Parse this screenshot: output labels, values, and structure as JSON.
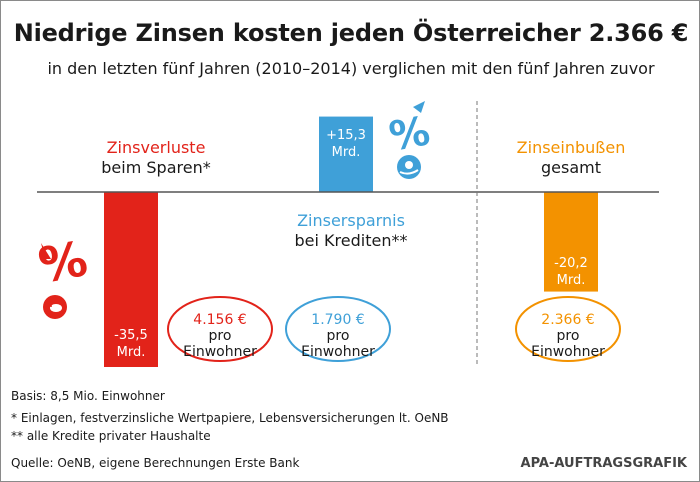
{
  "title": "Niedrige Zinsen kosten jeden Österreicher 2.366 €",
  "subtitle": "in den letzten fünf Jahren (2010–2014) verglichen mit den fünf Jahren zuvor",
  "colors": {
    "red": "#e2231a",
    "blue": "#3fa0d8",
    "orange": "#f39200",
    "axis": "#555555"
  },
  "chart_data": {
    "type": "bar",
    "categories": [
      "Zinsverluste beim Sparen*",
      "Zinsersparnis bei Krediten**",
      "Zinseinbußen gesamt"
    ],
    "values": [
      -35.5,
      15.3,
      -20.2
    ],
    "unit": "Mrd.",
    "bars": [
      {
        "id": "sparen",
        "label_line1": "Zinsverluste",
        "label_line2": "beim Sparen*",
        "value": -35.5,
        "value_text": "-35,5",
        "unit_text": "Mrd.",
        "color": "red",
        "per_capita": "4.156 €",
        "per_capita_unit1": "pro",
        "per_capita_unit2": "Einwohner"
      },
      {
        "id": "kredite",
        "label_line1": "Zinsersparnis",
        "label_line2": "bei Krediten**",
        "value": 15.3,
        "value_text": "+15,3",
        "unit_text": "Mrd.",
        "color": "blue",
        "per_capita": "1.790 €",
        "per_capita_unit1": "pro",
        "per_capita_unit2": "Einwohner"
      },
      {
        "id": "gesamt",
        "label_line1": "Zinseinbußen",
        "label_line2": "gesamt",
        "value": -20.2,
        "value_text": "-20,2",
        "unit_text": "Mrd.",
        "color": "orange",
        "per_capita": "2.366 €",
        "per_capita_unit1": "pro",
        "per_capita_unit2": "Einwohner"
      }
    ]
  },
  "icons": {
    "red_percent": "percent-down-icon",
    "piggy": "piggy-bank-icon",
    "blue_percent": "percent-up-icon",
    "hand_coin": "hand-coin-icon"
  },
  "footer": {
    "basis": "Basis: 8,5 Mio. Einwohner",
    "note1": "* Einlagen, festverzinsliche Wertpapiere, Lebensversicherungen lt. OeNB",
    "note2": "** alle Kredite privater Haushalte",
    "source": "Quelle: OeNB, eigene Berechnungen Erste Bank",
    "credit": "APA-AUFTRAGSGRAFIK"
  }
}
